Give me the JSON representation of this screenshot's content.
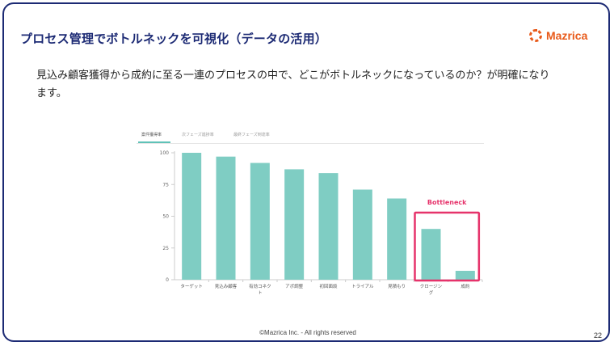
{
  "slide": {
    "title": "プロセス管理でボトルネックを可視化（データの活用）",
    "subtitle": "見込み顧客獲得から成約に至る一連のプロセスの中で、どこがボトルネックになっているのか？が明確になります。",
    "footer": "©Mazrica Inc. - All rights reserved",
    "page_number": "22"
  },
  "logo": {
    "text": "Mazrica",
    "color": "#e85a1a"
  },
  "chart_tabs": [
    "案件獲得率",
    "次フェーズ進捗率",
    "最終フェーズ到達率"
  ],
  "chart_data": {
    "type": "bar",
    "categories": [
      "ターゲット",
      "見込み顧客",
      "有効コネクト",
      "アポ調整",
      "初回面談",
      "トライアル",
      "見積もり",
      "クロージング",
      "成約"
    ],
    "category_lines": [
      [
        "ターゲット"
      ],
      [
        "見込み顧客"
      ],
      [
        "有効コネク",
        "ト"
      ],
      [
        "アポ調整"
      ],
      [
        "初回面談"
      ],
      [
        "トライアル"
      ],
      [
        "見積もり"
      ],
      [
        "クロージン",
        "グ"
      ],
      [
        "成約"
      ]
    ],
    "values": [
      100,
      97,
      92,
      87,
      84,
      71,
      64,
      40,
      7
    ],
    "ylim": [
      0,
      100
    ],
    "yticks": [
      0,
      25,
      50,
      75,
      100
    ],
    "bar_color": "#7fcdc3",
    "highlight": {
      "label": "Bottleneck",
      "categories": [
        "クロージング",
        "成約"
      ],
      "color": "#e6336b"
    },
    "grid": false
  }
}
